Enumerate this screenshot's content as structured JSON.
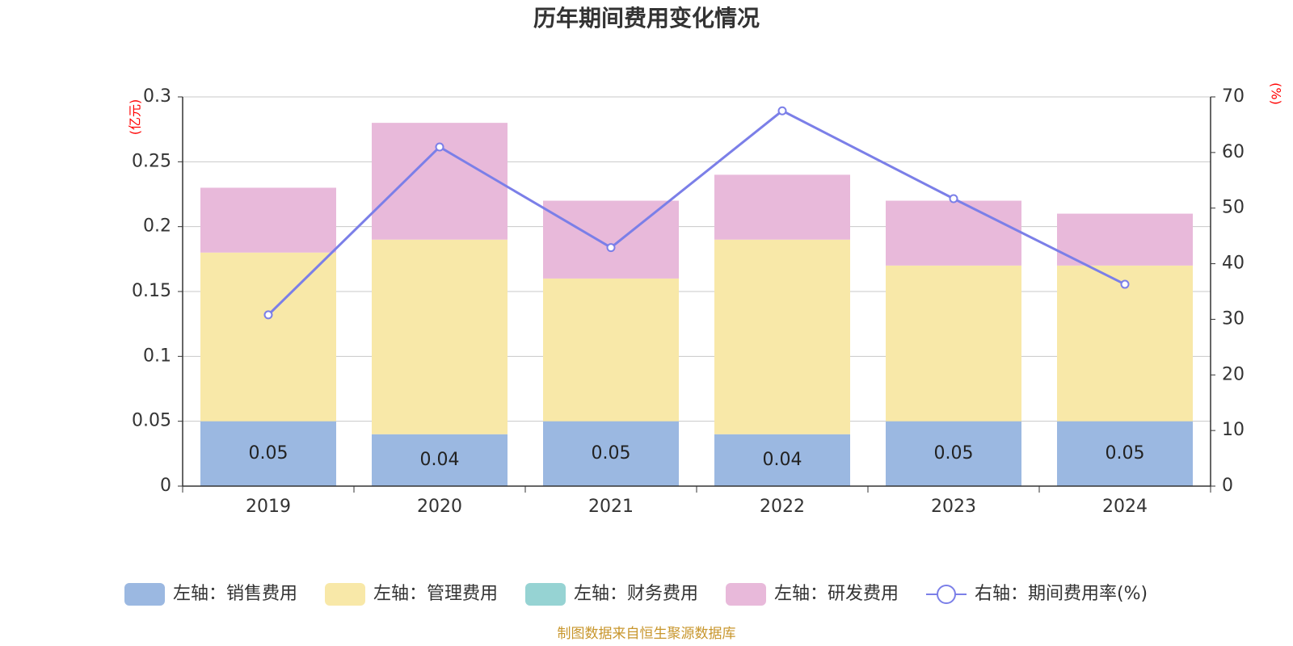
{
  "chart_data": {
    "type": "bar",
    "title": "历年期间费用变化情况",
    "categories": [
      "2019",
      "2020",
      "2021",
      "2022",
      "2023",
      "2024"
    ],
    "left_axis": {
      "unit": "(亿元)",
      "min": 0,
      "max": 0.3,
      "step": 0.05,
      "ticks": [
        "0",
        "0.05",
        "0.1",
        "0.15",
        "0.2",
        "0.25",
        "0.3"
      ]
    },
    "right_axis": {
      "unit": "(%)",
      "min": 0,
      "max": 70,
      "step": 10,
      "ticks": [
        "0",
        "10",
        "20",
        "30",
        "40",
        "50",
        "60",
        "70"
      ]
    },
    "series": [
      {
        "name": "左轴：销售费用",
        "type": "bar",
        "axis": "left",
        "color": "#9bb8e1",
        "values": [
          0.05,
          0.04,
          0.05,
          0.04,
          0.05,
          0.05
        ],
        "labels": [
          "0.05",
          "0.04",
          "0.05",
          "0.04",
          "0.05",
          "0.05"
        ]
      },
      {
        "name": "左轴：管理费用",
        "type": "bar",
        "axis": "left",
        "color": "#f8e8a8",
        "values": [
          0.13,
          0.15,
          0.11,
          0.15,
          0.12,
          0.12
        ]
      },
      {
        "name": "左轴：财务费用",
        "type": "bar",
        "axis": "left",
        "color": "#96d3d3",
        "values": [
          0,
          0,
          0,
          0,
          0,
          0
        ]
      },
      {
        "name": "左轴：研发费用",
        "type": "bar",
        "axis": "left",
        "color": "#e8b9da",
        "values": [
          0.05,
          0.09,
          0.06,
          0.05,
          0.05,
          0.04
        ]
      },
      {
        "name": "右轴：期间费用率(%)",
        "type": "line",
        "axis": "right",
        "color": "#7b7fe8",
        "values": [
          30.8,
          61.0,
          42.9,
          67.5,
          51.7,
          36.3
        ]
      }
    ],
    "grid": true,
    "legend": "bottom"
  },
  "footer": {
    "source": "制图数据来自恒生聚源数据库"
  }
}
